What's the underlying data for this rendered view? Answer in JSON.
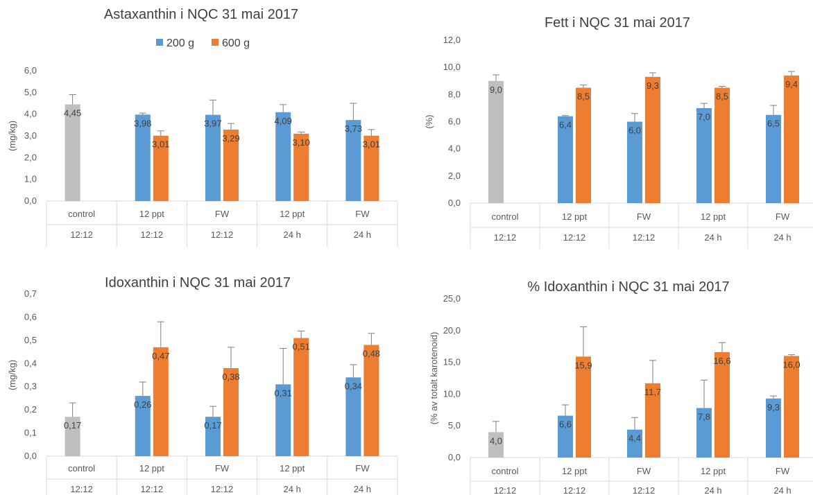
{
  "colors": {
    "control": "#bfbfbf",
    "g200": "#5b9bd5",
    "g600": "#ed7d31",
    "axis": "#d9d9d9",
    "errorbar": "#7f7f7f"
  },
  "legend": {
    "items": [
      {
        "label": "200 g",
        "color": "#5b9bd5"
      },
      {
        "label": "600 g",
        "color": "#ed7d31"
      }
    ]
  },
  "chart_data": [
    {
      "type": "bar",
      "title": "Astaxanthin i NQC 31 mai 2017",
      "ylabel": "(mg/kg)",
      "ylim": [
        0,
        6
      ],
      "yticks": [
        "0,0",
        "1,0",
        "2,0",
        "3,0",
        "4,0",
        "5,0",
        "6,0"
      ],
      "categories": [
        {
          "top": "control",
          "bottom": "12:12"
        },
        {
          "top": "12 ppt",
          "bottom": "12:12"
        },
        {
          "top": "FW",
          "bottom": "12:12"
        },
        {
          "top": "12 ppt",
          "bottom": "24 h"
        },
        {
          "top": "FW",
          "bottom": "24 h"
        }
      ],
      "bars": [
        {
          "group": 0,
          "series": "control",
          "value": 4.45,
          "error": 0.45,
          "label": "4,45"
        },
        {
          "group": 1,
          "series": "200 g",
          "value": 3.98,
          "error": 0.07,
          "label": "3,98"
        },
        {
          "group": 1,
          "series": "600 g",
          "value": 3.01,
          "error": 0.22,
          "label": "3,01"
        },
        {
          "group": 2,
          "series": "200 g",
          "value": 3.97,
          "error": 0.68,
          "label": "3,97"
        },
        {
          "group": 2,
          "series": "600 g",
          "value": 3.29,
          "error": 0.28,
          "label": "3,29"
        },
        {
          "group": 3,
          "series": "200 g",
          "value": 4.09,
          "error": 0.35,
          "label": "4,09"
        },
        {
          "group": 3,
          "series": "600 g",
          "value": 3.1,
          "error": 0.08,
          "label": "3,10"
        },
        {
          "group": 4,
          "series": "200 g",
          "value": 3.73,
          "error": 0.77,
          "label": "3,73"
        },
        {
          "group": 4,
          "series": "600 g",
          "value": 3.01,
          "error": 0.28,
          "label": "3,01"
        }
      ]
    },
    {
      "type": "bar",
      "title": "Fett i NQC 31 mai 2017",
      "ylabel": "(%)",
      "ylim": [
        0,
        12
      ],
      "yticks": [
        "0,0",
        "2,0",
        "4,0",
        "6,0",
        "8,0",
        "10,0",
        "12,0"
      ],
      "categories": [
        {
          "top": "control",
          "bottom": "12:12"
        },
        {
          "top": "12 ppt",
          "bottom": "12:12"
        },
        {
          "top": "FW",
          "bottom": "12:12"
        },
        {
          "top": "12 ppt",
          "bottom": "24 h"
        },
        {
          "top": "FW",
          "bottom": "24 h"
        }
      ],
      "bars": [
        {
          "group": 0,
          "series": "control",
          "value": 9.0,
          "error": 0.45,
          "label": "9,0"
        },
        {
          "group": 1,
          "series": "200 g",
          "value": 6.4,
          "error": 0.05,
          "label": "6,4"
        },
        {
          "group": 1,
          "series": "600 g",
          "value": 8.5,
          "error": 0.2,
          "label": "8,5"
        },
        {
          "group": 2,
          "series": "200 g",
          "value": 6.0,
          "error": 0.6,
          "label": "6,0"
        },
        {
          "group": 2,
          "series": "600 g",
          "value": 9.3,
          "error": 0.3,
          "label": "9,3"
        },
        {
          "group": 3,
          "series": "200 g",
          "value": 7.0,
          "error": 0.35,
          "label": "7,0"
        },
        {
          "group": 3,
          "series": "600 g",
          "value": 8.5,
          "error": 0.1,
          "label": "8,5"
        },
        {
          "group": 4,
          "series": "200 g",
          "value": 6.5,
          "error": 0.7,
          "label": "6,5"
        },
        {
          "group": 4,
          "series": "600 g",
          "value": 9.4,
          "error": 0.3,
          "label": "9,4"
        }
      ]
    },
    {
      "type": "bar",
      "title": "Idoxanthin i NQC 31 mai 2017",
      "ylabel": "(mg/kg)",
      "ylim": [
        0,
        0.7
      ],
      "yticks": [
        "0,0",
        "0,1",
        "0,2",
        "0,3",
        "0,4",
        "0,5",
        "0,6",
        "0,7"
      ],
      "categories": [
        {
          "top": "control",
          "bottom": "12:12"
        },
        {
          "top": "12 ppt",
          "bottom": "12:12"
        },
        {
          "top": "FW",
          "bottom": "12:12"
        },
        {
          "top": "12 ppt",
          "bottom": "24 h"
        },
        {
          "top": "FW",
          "bottom": "24 h"
        }
      ],
      "bars": [
        {
          "group": 0,
          "series": "control",
          "value": 0.17,
          "error": 0.06,
          "label": "0,17"
        },
        {
          "group": 1,
          "series": "200 g",
          "value": 0.26,
          "error": 0.06,
          "label": "0,26"
        },
        {
          "group": 1,
          "series": "600 g",
          "value": 0.47,
          "error": 0.11,
          "label": "0,47"
        },
        {
          "group": 2,
          "series": "200 g",
          "value": 0.17,
          "error": 0.045,
          "label": "0,17"
        },
        {
          "group": 2,
          "series": "600 g",
          "value": 0.38,
          "error": 0.09,
          "label": "0,38"
        },
        {
          "group": 3,
          "series": "200 g",
          "value": 0.31,
          "error": 0.155,
          "label": "0,31"
        },
        {
          "group": 3,
          "series": "600 g",
          "value": 0.51,
          "error": 0.03,
          "label": "0,51"
        },
        {
          "group": 4,
          "series": "200 g",
          "value": 0.34,
          "error": 0.055,
          "label": "0,34"
        },
        {
          "group": 4,
          "series": "600 g",
          "value": 0.48,
          "error": 0.05,
          "label": "0,48"
        }
      ]
    },
    {
      "type": "bar",
      "title": "% Idoxanthin i NQC 31 mai 2017",
      "ylabel": "(% av totalt karotenoid)",
      "ylim": [
        0,
        25
      ],
      "yticks": [
        "0,0",
        "5,0",
        "10,0",
        "15,0",
        "20,0",
        "25,0"
      ],
      "categories": [
        {
          "top": "control",
          "bottom": "12:12"
        },
        {
          "top": "12 ppt",
          "bottom": "12:12"
        },
        {
          "top": "FW",
          "bottom": "12:12"
        },
        {
          "top": "12 ppt",
          "bottom": "24 h"
        },
        {
          "top": "FW",
          "bottom": "24 h"
        }
      ],
      "bars": [
        {
          "group": 0,
          "series": "control",
          "value": 4.0,
          "error": 1.7,
          "label": "4,0"
        },
        {
          "group": 1,
          "series": "200 g",
          "value": 6.6,
          "error": 1.7,
          "label": "6,6"
        },
        {
          "group": 1,
          "series": "600 g",
          "value": 15.9,
          "error": 4.7,
          "label": "15,9"
        },
        {
          "group": 2,
          "series": "200 g",
          "value": 4.4,
          "error": 1.9,
          "label": "4,4"
        },
        {
          "group": 2,
          "series": "600 g",
          "value": 11.7,
          "error": 3.6,
          "label": "11,7"
        },
        {
          "group": 3,
          "series": "200 g",
          "value": 7.8,
          "error": 4.4,
          "label": "7,8"
        },
        {
          "group": 3,
          "series": "600 g",
          "value": 16.6,
          "error": 1.5,
          "label": "16,6"
        },
        {
          "group": 4,
          "series": "200 g",
          "value": 9.3,
          "error": 0.4,
          "label": "9,3"
        },
        {
          "group": 4,
          "series": "600 g",
          "value": 16.0,
          "error": 0.2,
          "label": "16,0"
        }
      ]
    }
  ]
}
